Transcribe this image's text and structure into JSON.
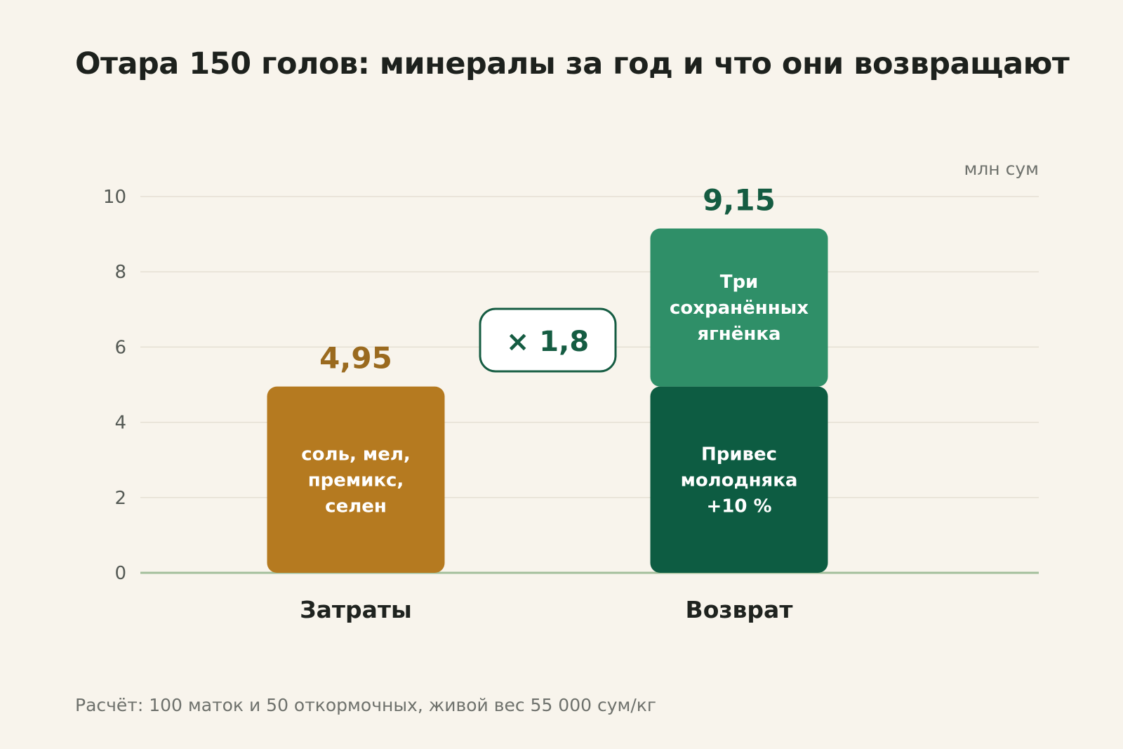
{
  "header": {
    "title": "Отара 150 голов: минералы за год и что они возвращают"
  },
  "unit_label": "млн сум",
  "footnote": "Расчёт: 100 маток и 50 откормочных, живой вес 55 000 сум/кг",
  "ratio_label": "× 1,8",
  "chart_data": {
    "type": "bar",
    "stacked": true,
    "title": "Отара 150 голов: минералы за год и что они возвращают",
    "ylabel": "млн сум",
    "ylim": [
      0,
      10
    ],
    "yticks": [
      0,
      2,
      4,
      6,
      8,
      10
    ],
    "grid": true,
    "categories": [
      "Затраты",
      "Возврат"
    ],
    "bars": [
      {
        "category": "Затраты",
        "total": 4.95,
        "total_label": "4,95",
        "total_color": "#9a6a1f",
        "segments": [
          {
            "label": [
              "соль, мел,",
              "премикс,",
              "селен"
            ],
            "value": 4.95,
            "color": "#b57a20"
          }
        ]
      },
      {
        "category": "Возврат",
        "total": 9.15,
        "total_label": "9,15",
        "total_color": "#155c42",
        "segments": [
          {
            "label": [
              "Привес",
              "молодняка",
              "+10 %"
            ],
            "value": 4.95,
            "color": "#0d5c42"
          },
          {
            "label": [
              "Три",
              "сохранённых",
              "ягнёнка"
            ],
            "value": 4.2,
            "color": "#2f8f68"
          }
        ]
      }
    ]
  }
}
